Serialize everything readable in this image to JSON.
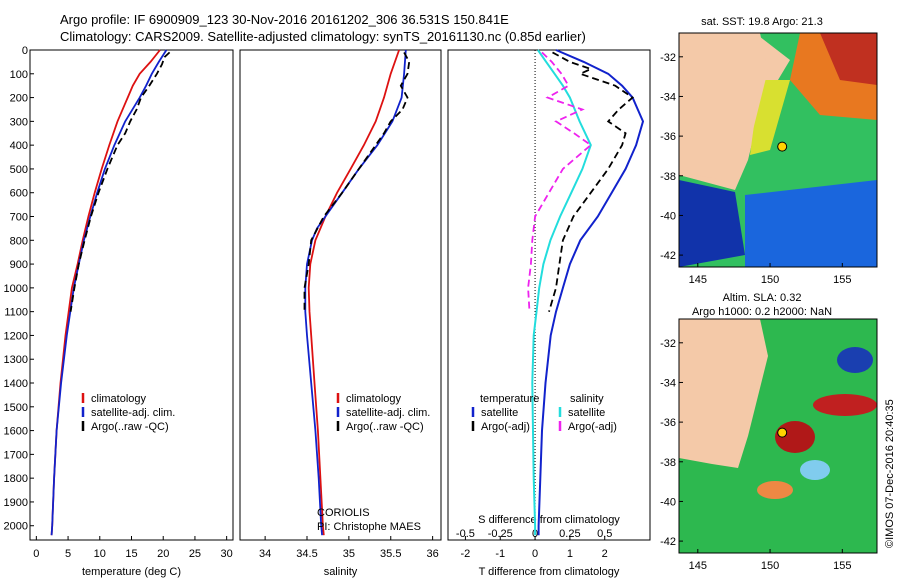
{
  "header": {
    "line1": "Argo profile: IF 6900909_123 30-Nov-2016 20161202_306 36.531S 150.841E",
    "line2": "Climatology: CARS2009. Satellite-adjusted climatology: synTS_20161130.nc (0.85d earlier)"
  },
  "map_sst": {
    "title": "sat. SST: 19.8 Argo: 21.3",
    "float_lat": -36.53,
    "float_lon": 150.84
  },
  "map_sla": {
    "title1": "Altim. SLA: 0.32",
    "title2": "Argo h1000: 0.2 h2000: NaN",
    "float_lat": -36.53,
    "float_lon": 150.84
  },
  "map_axes": {
    "lat_ticks": [
      "-32",
      "-34",
      "-36",
      "-38",
      "-40",
      "-42"
    ],
    "lon_ticks": [
      "145",
      "150",
      "155"
    ]
  },
  "credit": {
    "agency": "CORIOLIS",
    "pi": "PI: Christophe MAES"
  },
  "side_stamp": "©IMOS 07-Dec-2016 20:40:35",
  "legends": {
    "temp": [
      "climatology",
      "satellite-adj. clim.",
      "Argo(..raw -QC)"
    ],
    "sal": [
      "climatology",
      "satellite-adj. clim.",
      "Argo(..raw -QC)"
    ],
    "diff_titles": [
      "temperature",
      "salinity"
    ],
    "diff_entries": [
      "satellite",
      "Argo(-adj)",
      "satellite",
      "Argo(-adj)"
    ]
  },
  "colors": {
    "climatology": "#dd1111",
    "satellite": "#1122cc",
    "argo": "#000000",
    "sal_sat": "#22dddd",
    "sal_argo": "#ee22ee"
  },
  "chart_data": [
    {
      "type": "line",
      "panel": "temperature",
      "xlabel": "temperature (deg C)",
      "xlim": [
        -1,
        31
      ],
      "ylim": [
        2060,
        0
      ],
      "xticks": [
        "0",
        "5",
        "10",
        "15",
        "20",
        "25",
        "30"
      ],
      "yticks": [
        "0",
        "100",
        "200",
        "300",
        "400",
        "500",
        "600",
        "700",
        "800",
        "900",
        "1000",
        "1100",
        "1200",
        "1300",
        "1400",
        "1500",
        "1600",
        "1700",
        "1800",
        "1900",
        "2000"
      ],
      "series": [
        {
          "name": "climatology",
          "depth": [
            0,
            50,
            100,
            150,
            200,
            300,
            400,
            500,
            600,
            700,
            800,
            900,
            1000,
            1200,
            1400,
            1600,
            1800,
            2000,
            2040
          ],
          "values": [
            19.5,
            18.0,
            16.3,
            15.2,
            14.4,
            12.8,
            11.5,
            10.3,
            9.2,
            8.2,
            7.3,
            6.5,
            5.6,
            4.6,
            3.8,
            3.2,
            2.8,
            2.5,
            2.4
          ]
        },
        {
          "name": "satellite-adj. clim.",
          "depth": [
            0,
            50,
            100,
            150,
            200,
            300,
            400,
            500,
            600,
            700,
            800,
            900,
            1000,
            1200,
            1400,
            1600,
            1800,
            2000,
            2040
          ],
          "values": [
            20.5,
            19.3,
            18.2,
            17.3,
            16.3,
            14.0,
            12.3,
            10.8,
            9.6,
            8.5,
            7.5,
            6.7,
            5.9,
            4.8,
            3.9,
            3.2,
            2.8,
            2.5,
            2.4
          ]
        },
        {
          "name": "Argo(..raw -QC)",
          "depth": [
            10,
            30,
            60,
            100,
            150,
            200,
            250,
            300,
            350,
            400,
            500,
            600,
            700,
            800,
            900,
            1000,
            1100
          ],
          "values": [
            21.0,
            20.2,
            19.8,
            19.0,
            17.8,
            16.5,
            15.8,
            14.8,
            14.0,
            12.8,
            11.2,
            9.8,
            8.6,
            7.6,
            6.7,
            6.0,
            5.4
          ]
        }
      ]
    },
    {
      "type": "line",
      "panel": "salinity",
      "xlabel": "salinity",
      "xlim": [
        33.7,
        36.1
      ],
      "ylim": [
        2060,
        0
      ],
      "xticks": [
        "34",
        "34.5",
        "35",
        "35.5",
        "36"
      ],
      "series": [
        {
          "name": "climatology",
          "depth": [
            0,
            100,
            200,
            300,
            400,
            500,
            600,
            700,
            800,
            900,
            1000,
            1100,
            1200,
            1400,
            1600,
            1800,
            2000,
            2040
          ],
          "values": [
            35.6,
            35.5,
            35.42,
            35.32,
            35.18,
            35.02,
            34.86,
            34.72,
            34.6,
            34.54,
            34.52,
            34.53,
            34.55,
            34.59,
            34.63,
            34.66,
            34.69,
            34.7
          ]
        },
        {
          "name": "satellite-adj. clim.",
          "depth": [
            0,
            100,
            200,
            300,
            400,
            500,
            600,
            700,
            750,
            800,
            900,
            1000,
            1100,
            1200,
            1400,
            1600,
            1800,
            2000,
            2040
          ],
          "values": [
            35.68,
            35.66,
            35.63,
            35.52,
            35.34,
            35.12,
            34.92,
            34.72,
            34.62,
            34.56,
            34.5,
            34.48,
            34.48,
            34.5,
            34.55,
            34.6,
            34.64,
            34.67,
            34.68
          ]
        },
        {
          "name": "Argo(..raw -QC)",
          "depth": [
            10,
            50,
            100,
            150,
            200,
            250,
            300,
            350,
            400,
            500,
            600,
            700,
            800,
            900,
            1000,
            1100
          ],
          "values": [
            35.66,
            35.72,
            35.7,
            35.62,
            35.7,
            35.64,
            35.5,
            35.42,
            35.32,
            35.12,
            34.92,
            34.7,
            34.55,
            34.52,
            34.47,
            34.47
          ]
        }
      ]
    },
    {
      "type": "line",
      "panel": "difference",
      "xlabel": "T difference from climatology",
      "xlabel_top": "S difference from climatology",
      "xlim": [
        -2.5,
        3.3
      ],
      "ylim": [
        2060,
        0
      ],
      "xticks_T": [
        "-2",
        "-1",
        "0",
        "1",
        "2"
      ],
      "xticks_S": [
        "-0.5",
        "-0.25",
        "0",
        "0.25",
        "0.5"
      ],
      "series": [
        {
          "name": "satellite",
          "quantity": "T",
          "depth": [
            0,
            50,
            100,
            150,
            200,
            300,
            400,
            500,
            600,
            700,
            800,
            900,
            1000,
            1100,
            1200,
            1400,
            1600,
            1800,
            2000,
            2040
          ],
          "values": [
            0.6,
            1.4,
            2.1,
            2.5,
            2.8,
            3.1,
            2.9,
            2.6,
            2.2,
            1.8,
            1.3,
            1.0,
            0.8,
            0.6,
            0.45,
            0.3,
            0.2,
            0.15,
            0.1,
            0.1
          ]
        },
        {
          "name": "Argo(-adj)",
          "quantity": "T",
          "depth": [
            10,
            50,
            80,
            100,
            150,
            200,
            250,
            300,
            350,
            400,
            500,
            600,
            700,
            800,
            900,
            1000,
            1100
          ],
          "values": [
            0.5,
            1.0,
            1.6,
            1.3,
            2.3,
            2.8,
            2.4,
            2.1,
            2.6,
            2.5,
            2.1,
            1.6,
            1.1,
            0.8,
            0.7,
            0.6,
            0.4
          ]
        },
        {
          "name": "satellite",
          "quantity": "S",
          "depth": [
            0,
            50,
            100,
            150,
            200,
            300,
            400,
            500,
            600,
            700,
            800,
            900,
            1000,
            1100,
            1200,
            1400,
            1600,
            1800,
            2000,
            2040
          ],
          "values": [
            0.02,
            0.08,
            0.14,
            0.2,
            0.25,
            0.32,
            0.4,
            0.34,
            0.26,
            0.18,
            0.11,
            0.06,
            0.03,
            0.01,
            -0.01,
            -0.02,
            -0.015,
            -0.01,
            0.0,
            0.0
          ]
        },
        {
          "name": "Argo(-adj)",
          "quantity": "S",
          "depth": [
            10,
            50,
            100,
            150,
            200,
            250,
            300,
            350,
            400,
            500,
            600,
            700,
            800,
            900,
            1000,
            1100
          ],
          "values": [
            0.05,
            0.12,
            0.19,
            0.24,
            0.09,
            0.34,
            0.15,
            0.28,
            0.4,
            0.2,
            0.1,
            0.0,
            -0.02,
            -0.03,
            -0.05,
            -0.04
          ]
        }
      ]
    }
  ]
}
